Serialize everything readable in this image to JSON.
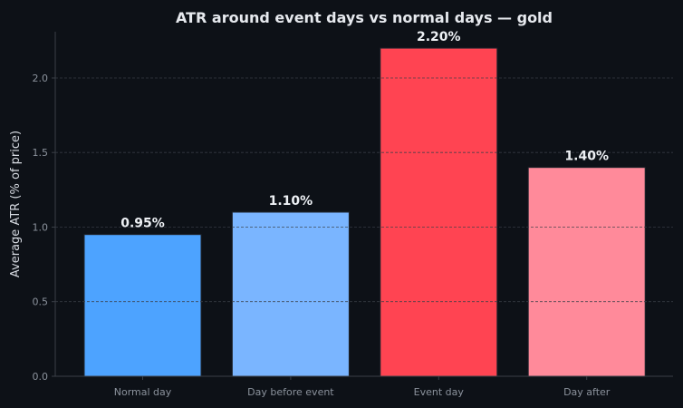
{
  "chart_data": {
    "type": "bar",
    "title": "ATR around event days vs normal days — gold",
    "xlabel": "",
    "ylabel": "Average ATR (% of price)",
    "categories": [
      "Normal day",
      "Day before event",
      "Event day",
      "Day after"
    ],
    "values": [
      0.95,
      1.1,
      2.2,
      1.4
    ],
    "value_labels": [
      "0.95%",
      "1.10%",
      "2.20%",
      "1.40%"
    ],
    "bar_colors": [
      "#4da3ff",
      "#7ab5ff",
      "#ff4452",
      "#ff8a9a"
    ],
    "ylim": [
      0,
      2.31
    ],
    "yticks": [
      0.0,
      0.5,
      1.0,
      1.5,
      2.0
    ],
    "ytick_labels": [
      "0.0",
      "0.5",
      "1.0",
      "1.5",
      "2.0"
    ],
    "grid": true,
    "background": "#0d1117",
    "colors": {
      "axis": "#3a3f47",
      "grid": "#3a3f47",
      "text": "#e6e9ee",
      "tick_text": "#8b929c"
    }
  }
}
